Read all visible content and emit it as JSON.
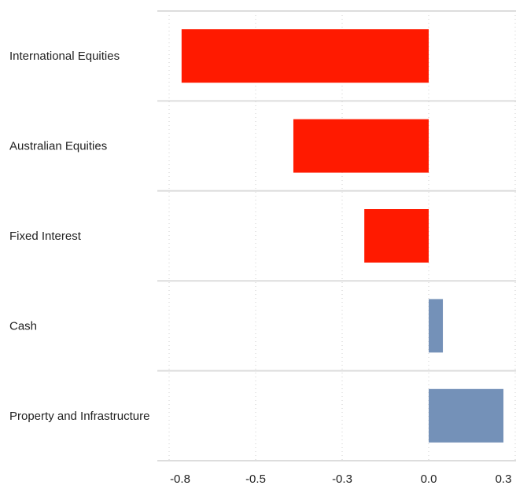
{
  "chart_data": {
    "type": "barh",
    "categories": [
      "International Equities",
      "Australian Equities",
      "Fixed Interest",
      "Cash",
      "Property and Infrastructure"
    ],
    "values": [
      -0.714,
      -0.391,
      -0.186,
      0.041,
      0.216
    ],
    "colors": [
      "#ff1a00",
      "#ff1a00",
      "#ff1a00",
      "#7491b8",
      "#7491b8"
    ],
    "xlim": [
      -0.75,
      0.25
    ],
    "xticks": [
      {
        "value": -0.75,
        "label": "-0.8"
      },
      {
        "value": -0.5,
        "label": "-0.5"
      },
      {
        "value": -0.25,
        "label": "-0.3"
      },
      {
        "value": 0,
        "label": "0.0"
      },
      {
        "value": 0.25,
        "label": "0.3"
      }
    ],
    "grid": true
  }
}
